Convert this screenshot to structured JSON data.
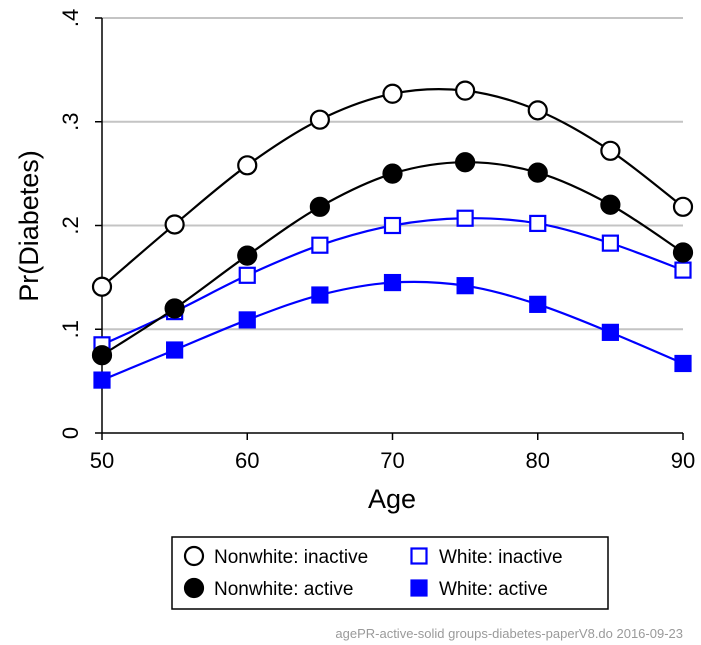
{
  "chart_data": {
    "type": "line",
    "title": "",
    "xlabel": "Age",
    "ylabel": "Pr(Diabetes)",
    "xlim": [
      50,
      90
    ],
    "ylim": [
      0,
      0.4
    ],
    "x_ticks": [
      {
        "value": 50,
        "label": "50"
      },
      {
        "value": 60,
        "label": "60"
      },
      {
        "value": 70,
        "label": "70"
      },
      {
        "value": 80,
        "label": "80"
      },
      {
        "value": 90,
        "label": "90"
      }
    ],
    "y_ticks": [
      {
        "value": 0,
        "label": "0"
      },
      {
        "value": 0.1,
        "label": ".1"
      },
      {
        "value": 0.2,
        "label": ".2"
      },
      {
        "value": 0.3,
        "label": ".3"
      },
      {
        "value": 0.4,
        "label": ".4"
      }
    ],
    "grid": "horizontal",
    "legend_position": "bottom",
    "x": [
      50,
      55,
      60,
      65,
      70,
      75,
      80,
      85,
      90
    ],
    "series": [
      {
        "name": "Nonwhite: inactive",
        "color": "#000000",
        "marker": "circle",
        "filled": false,
        "values": [
          0.141,
          0.201,
          0.258,
          0.302,
          0.327,
          0.33,
          0.311,
          0.272,
          0.218
        ]
      },
      {
        "name": "White: inactive",
        "color": "#0000ff",
        "marker": "square",
        "filled": false,
        "values": [
          0.085,
          0.117,
          0.152,
          0.181,
          0.2,
          0.207,
          0.202,
          0.183,
          0.157
        ]
      },
      {
        "name": "Nonwhite: active",
        "color": "#000000",
        "marker": "circle",
        "filled": true,
        "values": [
          0.075,
          0.12,
          0.171,
          0.218,
          0.25,
          0.261,
          0.251,
          0.22,
          0.174
        ]
      },
      {
        "name": "White: active",
        "color": "#0000ff",
        "marker": "square",
        "filled": true,
        "values": [
          0.051,
          0.08,
          0.109,
          0.133,
          0.145,
          0.142,
          0.124,
          0.097,
          0.067
        ]
      }
    ]
  },
  "note": "agePR-active-solid groups-diabetes-paperV8.do 2016-09-23"
}
